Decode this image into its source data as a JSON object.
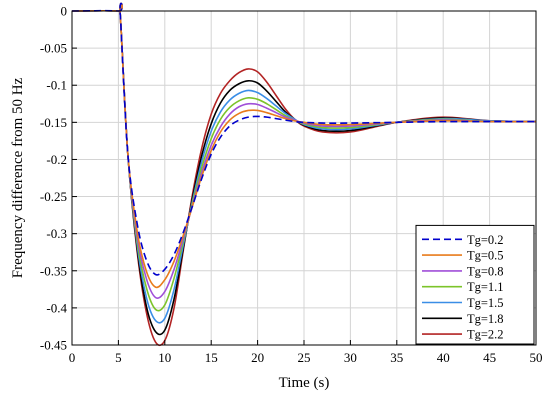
{
  "chart_data": {
    "type": "line",
    "xlabel": "Time (s)",
    "ylabel": "Frequency difference from 50 Hz",
    "xlim": [
      0,
      50
    ],
    "ylim": [
      -0.45,
      0
    ],
    "xticks": [
      0,
      5,
      10,
      15,
      20,
      25,
      30,
      35,
      40,
      45,
      50
    ],
    "yticks": [
      0,
      -0.05,
      -0.1,
      -0.15,
      -0.2,
      -0.25,
      -0.3,
      -0.35,
      -0.4,
      -0.45
    ],
    "xtick_labels": [
      "0",
      "5",
      "10",
      "15",
      "20",
      "25",
      "30",
      "35",
      "40",
      "45",
      "50"
    ],
    "ytick_labels": [
      "0",
      "-0.05",
      "-0.1",
      "-0.15",
      "-0.2",
      "-0.25",
      "-0.3",
      "-0.35",
      "-0.4",
      "-0.45"
    ],
    "grid": true,
    "legend_position": "lower-right",
    "series": [
      {
        "name": "Tg=0.2",
        "color": "#0000cc",
        "dashed": true,
        "x": [
          0,
          5,
          5.2,
          6,
          7,
          8,
          9,
          10,
          11,
          12,
          13,
          14,
          15,
          16,
          17,
          18,
          19,
          20,
          21,
          22,
          23,
          24,
          25,
          27,
          30,
          35,
          40,
          45,
          50
        ],
        "y": [
          0,
          0,
          -0.005,
          -0.19,
          -0.285,
          -0.335,
          -0.355,
          -0.348,
          -0.328,
          -0.298,
          -0.262,
          -0.225,
          -0.193,
          -0.17,
          -0.155,
          -0.147,
          -0.143,
          -0.142,
          -0.143,
          -0.145,
          -0.147,
          -0.149,
          -0.15,
          -0.151,
          -0.151,
          -0.15,
          -0.149,
          -0.149,
          -0.149
        ]
      },
      {
        "name": "Tg=0.5",
        "color": "#e87b1c",
        "dashed": false,
        "x": [
          0,
          5,
          5.2,
          6,
          7,
          8,
          9,
          10,
          11,
          12,
          13,
          14,
          15,
          16,
          17,
          18,
          19,
          20,
          21,
          22,
          23,
          24,
          25,
          27,
          30,
          35,
          40,
          45,
          50
        ],
        "y": [
          0,
          0,
          -0.005,
          -0.19,
          -0.295,
          -0.35,
          -0.372,
          -0.362,
          -0.337,
          -0.302,
          -0.262,
          -0.222,
          -0.188,
          -0.163,
          -0.147,
          -0.138,
          -0.134,
          -0.134,
          -0.137,
          -0.141,
          -0.145,
          -0.148,
          -0.15,
          -0.153,
          -0.153,
          -0.15,
          -0.148,
          -0.149,
          -0.149
        ]
      },
      {
        "name": "Tg=0.8",
        "color": "#a04fd8",
        "dashed": false,
        "x": [
          0,
          5,
          5.2,
          6,
          7,
          8,
          9,
          10,
          11,
          12,
          13,
          14,
          15,
          16,
          17,
          18,
          19,
          20,
          21,
          22,
          23,
          24,
          25,
          27,
          30,
          35,
          40,
          45,
          50
        ],
        "y": [
          0,
          0,
          -0.005,
          -0.19,
          -0.302,
          -0.36,
          -0.386,
          -0.378,
          -0.348,
          -0.306,
          -0.261,
          -0.217,
          -0.181,
          -0.156,
          -0.139,
          -0.129,
          -0.125,
          -0.126,
          -0.131,
          -0.137,
          -0.143,
          -0.147,
          -0.151,
          -0.155,
          -0.155,
          -0.15,
          -0.147,
          -0.149,
          -0.149
        ]
      },
      {
        "name": "Tg=1.1",
        "color": "#7cc42a",
        "dashed": false,
        "x": [
          0,
          5,
          5.2,
          6,
          7,
          8,
          9,
          10,
          11,
          12,
          13,
          14,
          15,
          16,
          17,
          18,
          19,
          20,
          21,
          22,
          23,
          24,
          25,
          27,
          30,
          35,
          40,
          45,
          50
        ],
        "y": [
          0,
          0,
          -0.005,
          -0.19,
          -0.308,
          -0.372,
          -0.402,
          -0.396,
          -0.36,
          -0.31,
          -0.258,
          -0.21,
          -0.172,
          -0.146,
          -0.13,
          -0.121,
          -0.117,
          -0.119,
          -0.125,
          -0.133,
          -0.141,
          -0.147,
          -0.152,
          -0.157,
          -0.157,
          -0.15,
          -0.146,
          -0.149,
          -0.149
        ]
      },
      {
        "name": "Tg=1.5",
        "color": "#3a8ee6",
        "dashed": false,
        "x": [
          0,
          5,
          5.2,
          6,
          7,
          8,
          9,
          10,
          11,
          12,
          13,
          14,
          15,
          16,
          17,
          18,
          19,
          20,
          21,
          22,
          23,
          24,
          25,
          27,
          30,
          35,
          40,
          45,
          50
        ],
        "y": [
          0,
          0,
          -0.005,
          -0.19,
          -0.313,
          -0.385,
          -0.417,
          -0.414,
          -0.375,
          -0.315,
          -0.255,
          -0.202,
          -0.162,
          -0.136,
          -0.12,
          -0.111,
          -0.107,
          -0.11,
          -0.118,
          -0.128,
          -0.138,
          -0.146,
          -0.153,
          -0.159,
          -0.159,
          -0.15,
          -0.145,
          -0.148,
          -0.149
        ]
      },
      {
        "name": "Tg=1.8",
        "color": "#000000",
        "dashed": false,
        "x": [
          0,
          5,
          5.2,
          6,
          7,
          8,
          9,
          10,
          11,
          12,
          13,
          14,
          15,
          16,
          17,
          18,
          19,
          20,
          21,
          22,
          23,
          24,
          25,
          27,
          30,
          35,
          40,
          45,
          50
        ],
        "y": [
          0,
          0,
          -0.005,
          -0.19,
          -0.318,
          -0.397,
          -0.432,
          -0.43,
          -0.388,
          -0.319,
          -0.251,
          -0.194,
          -0.152,
          -0.124,
          -0.107,
          -0.098,
          -0.094,
          -0.097,
          -0.108,
          -0.122,
          -0.136,
          -0.146,
          -0.154,
          -0.161,
          -0.161,
          -0.15,
          -0.144,
          -0.148,
          -0.149
        ]
      },
      {
        "name": "Tg=2.2",
        "color": "#b32424",
        "dashed": false,
        "x": [
          0,
          5,
          5.2,
          6,
          7,
          8,
          9,
          10,
          11,
          12,
          13,
          14,
          15,
          16,
          17,
          18,
          19,
          20,
          21,
          22,
          23,
          24,
          25,
          27,
          30,
          35,
          40,
          45,
          50
        ],
        "y": [
          0,
          0,
          -0.005,
          -0.19,
          -0.322,
          -0.405,
          -0.446,
          -0.444,
          -0.4,
          -0.322,
          -0.246,
          -0.184,
          -0.139,
          -0.111,
          -0.094,
          -0.083,
          -0.078,
          -0.082,
          -0.096,
          -0.114,
          -0.132,
          -0.146,
          -0.155,
          -0.163,
          -0.163,
          -0.15,
          -0.143,
          -0.148,
          -0.149
        ]
      }
    ]
  }
}
